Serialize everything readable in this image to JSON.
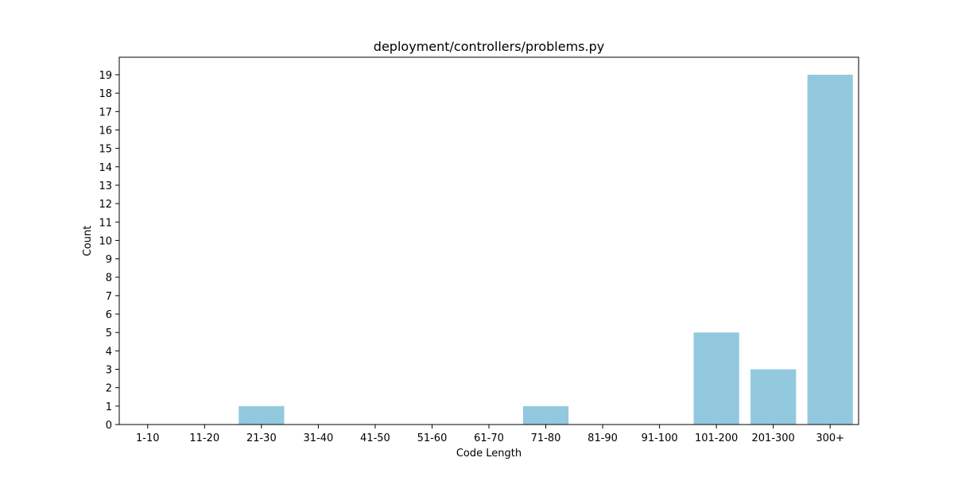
{
  "chart_data": {
    "type": "bar",
    "title": "deployment/controllers/problems.py",
    "xlabel": "Code Length",
    "ylabel": "Count",
    "categories": [
      "1-10",
      "11-20",
      "21-30",
      "31-40",
      "41-50",
      "51-60",
      "61-70",
      "71-80",
      "81-90",
      "91-100",
      "101-200",
      "201-300",
      "300+"
    ],
    "values": [
      0,
      0,
      1,
      0,
      0,
      0,
      0,
      1,
      0,
      0,
      5,
      3,
      19
    ],
    "ylim": [
      0,
      19.95
    ],
    "yticks": [
      0,
      1,
      2,
      3,
      4,
      5,
      6,
      7,
      8,
      9,
      10,
      11,
      12,
      13,
      14,
      15,
      16,
      17,
      18,
      19
    ],
    "grid": false,
    "bar_color": "#92c9df"
  }
}
